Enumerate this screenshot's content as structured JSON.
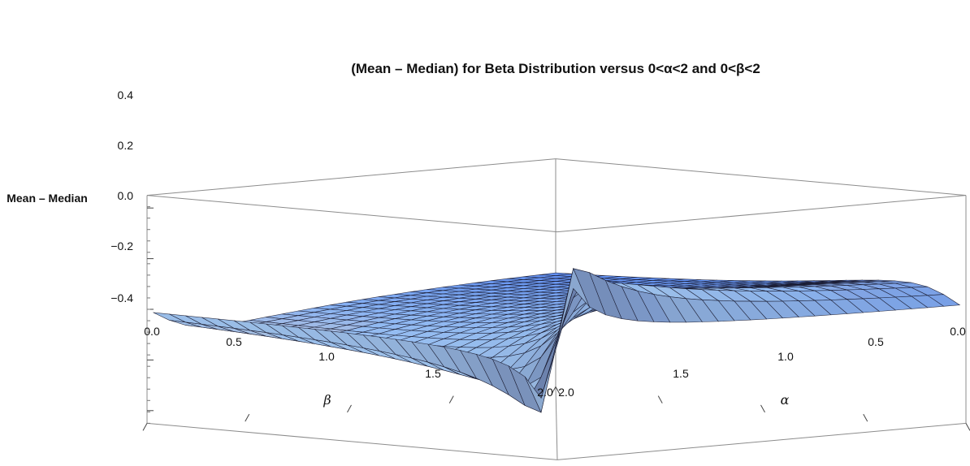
{
  "chart_data": {
    "type": "surface3d",
    "title": "(Mean – Median) for Beta Distribution versus 0<α<2 and 0<β<2",
    "zlabel": "Mean – Median",
    "xlabel": "β",
    "ylabel": "α",
    "zlim": [
      -0.45,
      0.45
    ],
    "beta_range": [
      0,
      2
    ],
    "alpha_range": [
      0,
      2
    ],
    "z_ticks": [
      "0.4",
      "0.2",
      "0.0",
      "−0.2",
      "−0.4"
    ],
    "beta_ticks": [
      "0.0",
      "0.5",
      "1.0",
      "1.5",
      "2.0"
    ],
    "alpha_ticks": [
      "2.0",
      "1.5",
      "1.0",
      "0.5",
      "0.0"
    ],
    "function": "mean - median of Beta(alpha, beta)",
    "mesh": 25,
    "colors": {
      "box_edge": "#8c8c8c",
      "mesh_line": "#141428",
      "surface_top": "#5f8ef0",
      "surface_light": "#c8ecfc",
      "surface_warm": "#f0b090",
      "surface_dark": "#4a2f7a"
    }
  }
}
